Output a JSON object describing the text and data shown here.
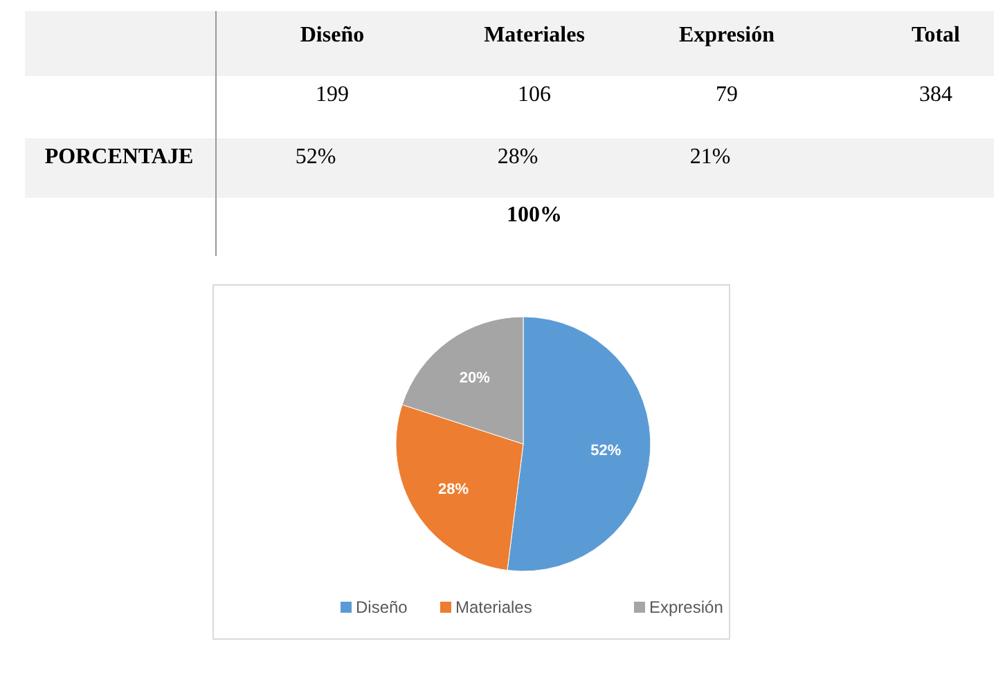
{
  "chart_data": {
    "type": "pie",
    "categories": [
      "Diseño",
      "Materiales",
      "Expresión"
    ],
    "values": [
      52,
      28,
      20
    ],
    "colors": [
      "#5b9bd5",
      "#ed7d31",
      "#a5a5a5"
    ],
    "value_labels": [
      "52%",
      "28%",
      "20%"
    ],
    "legend": "bottom",
    "annotations": [
      "199",
      "106",
      "79",
      "Total",
      "384",
      "PORCENTAJE",
      "52%",
      "28%",
      "21%",
      "100%"
    ]
  }
}
